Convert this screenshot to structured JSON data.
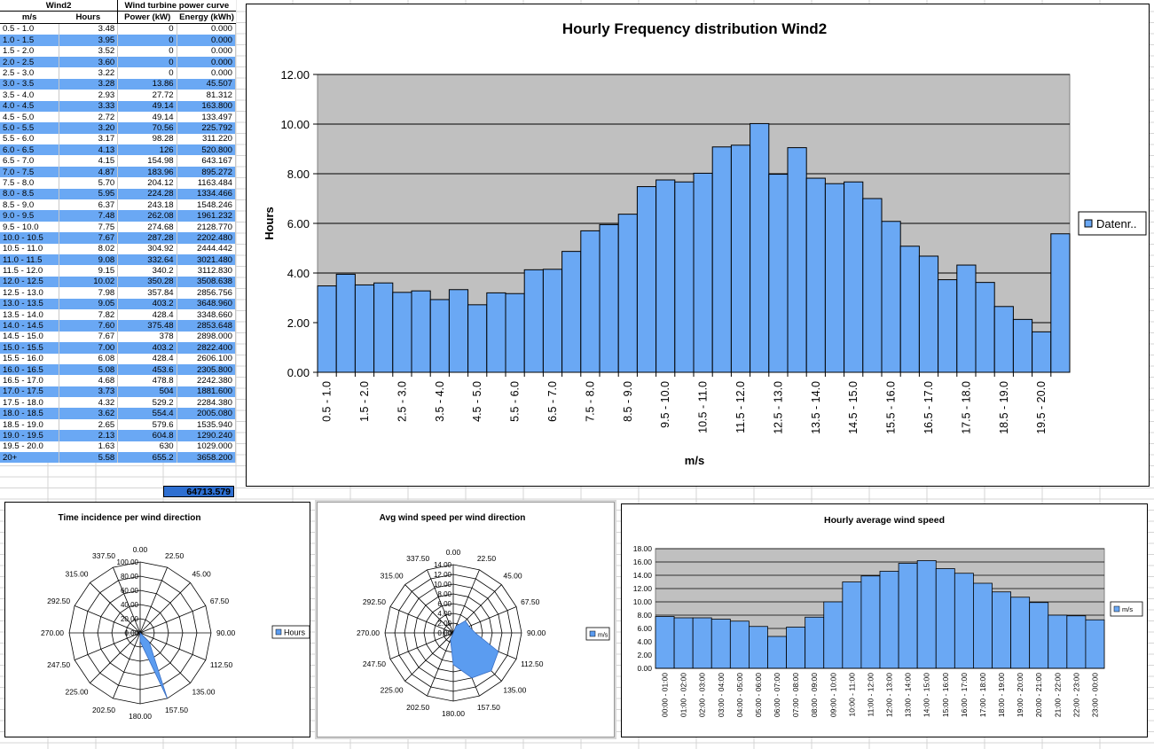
{
  "table": {
    "group_header_left": "Wind2",
    "group_header_right": "Wind turbine power curve",
    "columns": [
      "m/s",
      "Hours",
      "Power (kW)",
      "Energy (kWh)"
    ],
    "rows": [
      [
        "0.5 - 1.0",
        "3.48",
        "0",
        "0.000"
      ],
      [
        "1.0 - 1.5",
        "3.95",
        "0",
        "0.000"
      ],
      [
        "1.5 - 2.0",
        "3.52",
        "0",
        "0.000"
      ],
      [
        "2.0 - 2.5",
        "3.60",
        "0",
        "0.000"
      ],
      [
        "2.5 - 3.0",
        "3.22",
        "0",
        "0.000"
      ],
      [
        "3.0 - 3.5",
        "3.28",
        "13.86",
        "45.507"
      ],
      [
        "3.5 - 4.0",
        "2.93",
        "27.72",
        "81.312"
      ],
      [
        "4.0 - 4.5",
        "3.33",
        "49.14",
        "163.800"
      ],
      [
        "4.5 - 5.0",
        "2.72",
        "49.14",
        "133.497"
      ],
      [
        "5.0 - 5.5",
        "3.20",
        "70.56",
        "225.792"
      ],
      [
        "5.5 - 6.0",
        "3.17",
        "98.28",
        "311.220"
      ],
      [
        "6.0 - 6.5",
        "4.13",
        "126",
        "520.800"
      ],
      [
        "6.5 - 7.0",
        "4.15",
        "154.98",
        "643.167"
      ],
      [
        "7.0 - 7.5",
        "4.87",
        "183.96",
        "895.272"
      ],
      [
        "7.5 - 8.0",
        "5.70",
        "204.12",
        "1163.484"
      ],
      [
        "8.0 - 8.5",
        "5.95",
        "224.28",
        "1334.466"
      ],
      [
        "8.5 - 9.0",
        "6.37",
        "243.18",
        "1548.246"
      ],
      [
        "9.0 - 9.5",
        "7.48",
        "262.08",
        "1961.232"
      ],
      [
        "9.5 - 10.0",
        "7.75",
        "274.68",
        "2128.770"
      ],
      [
        "10.0 - 10.5",
        "7.67",
        "287.28",
        "2202.480"
      ],
      [
        "10.5 - 11.0",
        "8.02",
        "304.92",
        "2444.442"
      ],
      [
        "11.0 - 11.5",
        "9.08",
        "332.64",
        "3021.480"
      ],
      [
        "11.5 - 12.0",
        "9.15",
        "340.2",
        "3112.830"
      ],
      [
        "12.0 - 12.5",
        "10.02",
        "350.28",
        "3508.638"
      ],
      [
        "12.5 - 13.0",
        "7.98",
        "357.84",
        "2856.756"
      ],
      [
        "13.0 - 13.5",
        "9.05",
        "403.2",
        "3648.960"
      ],
      [
        "13.5 - 14.0",
        "7.82",
        "428.4",
        "3348.660"
      ],
      [
        "14.0 - 14.5",
        "7.60",
        "375.48",
        "2853.648"
      ],
      [
        "14.5 - 15.0",
        "7.67",
        "378",
        "2898.000"
      ],
      [
        "15.0 - 15.5",
        "7.00",
        "403.2",
        "2822.400"
      ],
      [
        "15.5 - 16.0",
        "6.08",
        "428.4",
        "2606.100"
      ],
      [
        "16.0 - 16.5",
        "5.08",
        "453.6",
        "2305.800"
      ],
      [
        "16.5 - 17.0",
        "4.68",
        "478.8",
        "2242.380"
      ],
      [
        "17.0 - 17.5",
        "3.73",
        "504",
        "1881.600"
      ],
      [
        "17.5 - 18.0",
        "4.32",
        "529.2",
        "2284.380"
      ],
      [
        "18.0 - 18.5",
        "3.62",
        "554.4",
        "2005.080"
      ],
      [
        "18.5 - 19.0",
        "2.65",
        "579.6",
        "1535.940"
      ],
      [
        "19.0 - 19.5",
        "2.13",
        "604.8",
        "1290.240"
      ],
      [
        "19.5 - 20.0",
        "1.63",
        "630",
        "1029.000"
      ],
      [
        "20+",
        "5.58",
        "655.2",
        "3658.200"
      ]
    ],
    "total_energy": "64713.579"
  },
  "chart_data": [
    {
      "type": "bar",
      "title": "Hourly Frequency distribution Wind2",
      "xlabel": "m/s",
      "ylabel": "Hours",
      "ylim": [
        0,
        12
      ],
      "yticks": [
        "0.00",
        "2.00",
        "4.00",
        "6.00",
        "8.00",
        "10.00",
        "12.00"
      ],
      "grid": true,
      "legend_position": "right",
      "series": [
        {
          "name": "Datenr..",
          "color": "#6aa8f4",
          "values": [
            3.48,
            3.95,
            3.52,
            3.6,
            3.22,
            3.28,
            2.93,
            3.33,
            2.72,
            3.2,
            3.17,
            4.13,
            4.15,
            4.87,
            5.7,
            5.95,
            6.37,
            7.48,
            7.75,
            7.67,
            8.02,
            9.08,
            9.15,
            10.02,
            7.98,
            9.05,
            7.82,
            7.6,
            7.67,
            7.0,
            6.08,
            5.08,
            4.68,
            3.73,
            4.32,
            3.62,
            2.65,
            2.13,
            1.63,
            5.58
          ]
        }
      ],
      "categories": [
        "0.5 - 1.0",
        "1.0 - 1.5",
        "1.5 - 2.0",
        "2.0 - 2.5",
        "2.5 - 3.0",
        "3.0 - 3.5",
        "3.5 - 4.0",
        "4.0 - 4.5",
        "4.5 - 5.0",
        "5.0 - 5.5",
        "5.5 - 6.0",
        "6.0 - 6.5",
        "6.5 - 7.0",
        "7.0 - 7.5",
        "7.5 - 8.0",
        "8.0 - 8.5",
        "8.5 - 9.0",
        "9.0 - 9.5",
        "9.5 - 10.0",
        "10.0 - 10.5",
        "10.5 - 11.0",
        "11.0 - 11.5",
        "11.5 - 12.0",
        "12.0 - 12.5",
        "12.5 - 13.0",
        "13.0 - 13.5",
        "13.5 - 14.0",
        "14.0 - 14.5",
        "14.5 - 15.0",
        "15.0 - 15.5",
        "15.5 - 16.0",
        "16.0 - 16.5",
        "16.5 - 17.0",
        "17.0 - 17.5",
        "17.5 - 18.0",
        "18.0 - 18.5",
        "18.5 - 19.0",
        "19.0 - 19.5",
        "19.5 - 20.0",
        ""
      ],
      "shown_tick_labels": [
        "0.5 - 1.0",
        "1.5 - 2.0",
        "2.5 - 3.0",
        "3.5 - 4.0",
        "4.5 - 5.0",
        "5.5 - 6.0",
        "6.5 - 7.0",
        "7.5 - 8.0",
        "8.5 - 9.0",
        "9.5 - 10.0",
        "10.5 - 11.0",
        "11.5 - 12.0",
        "12.5 - 13.0",
        "13.5 - 14.0",
        "14.5 - 15.0",
        "15.5 - 16.0",
        "16.5 - 17.0",
        "17.5 - 18.0",
        "18.5 - 19.0",
        "19.5 - 20.0"
      ]
    },
    {
      "type": "radar",
      "title": "Time incidence per wind direction",
      "legend": "Hours",
      "legend_position": "right",
      "color": "#5b9cf0",
      "directions": [
        "0.00",
        "22.50",
        "45.00",
        "67.50",
        "90.00",
        "112.50",
        "135.00",
        "157.50",
        "180.00",
        "202.50",
        "225.00",
        "247.50",
        "270.00",
        "292.50",
        "315.00",
        "337.50"
      ],
      "rlim": [
        0,
        100
      ],
      "radial_ticks": [
        "0.00",
        "20.00",
        "40.00",
        "60.00",
        "80.00",
        "100.00"
      ],
      "values": [
        0,
        0,
        0,
        0,
        0,
        0,
        18,
        100,
        12,
        0,
        0,
        0,
        0,
        0,
        0,
        0
      ]
    },
    {
      "type": "radar",
      "title": "Avg wind speed per wind direction",
      "legend": "m/s",
      "legend_position": "right",
      "color": "#5b9cf0",
      "directions": [
        "0.00",
        "22.50",
        "45.00",
        "67.50",
        "90.00",
        "112.50",
        "135.00",
        "157.50",
        "180.00",
        "202.50",
        "225.00",
        "247.50",
        "270.00",
        "292.50",
        "315.00",
        "337.50"
      ],
      "rlim": [
        0,
        14
      ],
      "radial_ticks": [
        "0.00",
        "2.00",
        "4.00",
        "6.00",
        "8.00",
        "10.00",
        "12.00",
        "14.00"
      ],
      "values": [
        0,
        1.5,
        3.5,
        3.5,
        4.5,
        10.0,
        11.0,
        10.0,
        6.5,
        1.5,
        0,
        0,
        0,
        0,
        0,
        0
      ]
    },
    {
      "type": "bar",
      "title": "Hourly average wind speed",
      "legend": "m/s",
      "legend_position": "right",
      "ylim": [
        0,
        18
      ],
      "yticks": [
        "0.00",
        "2.00",
        "4.00",
        "6.00",
        "8.00",
        "10.00",
        "12.00",
        "14.00",
        "16.00",
        "18.00"
      ],
      "grid": true,
      "color": "#6aa8f4",
      "categories": [
        "00:00 - 01:00",
        "01:00 - 02:00",
        "02:00 - 03:00",
        "03:00 - 04:00",
        "04:00 - 05:00",
        "05:00 - 06:00",
        "06:00 - 07:00",
        "07:00 - 08:00",
        "08:00 - 09:00",
        "09:00 - 10:00",
        "10:00 - 11:00",
        "11:00 - 12:00",
        "12:00 - 13:00",
        "13:00 - 14:00",
        "14:00 - 15:00",
        "15:00 - 16:00",
        "16:00 - 17:00",
        "17:00 - 18:00",
        "18:00 - 19:00",
        "19:00 - 20:00",
        "20:00 - 21:00",
        "21:00 - 22:00",
        "22:00 - 23:00",
        "23:00 - 00:00"
      ],
      "values": [
        7.8,
        7.6,
        7.6,
        7.4,
        7.1,
        6.3,
        4.8,
        6.2,
        7.7,
        10.0,
        13.0,
        13.9,
        14.6,
        15.8,
        16.2,
        15.0,
        14.3,
        12.8,
        11.5,
        10.7,
        9.9,
        8.0,
        7.9,
        7.3
      ]
    }
  ]
}
